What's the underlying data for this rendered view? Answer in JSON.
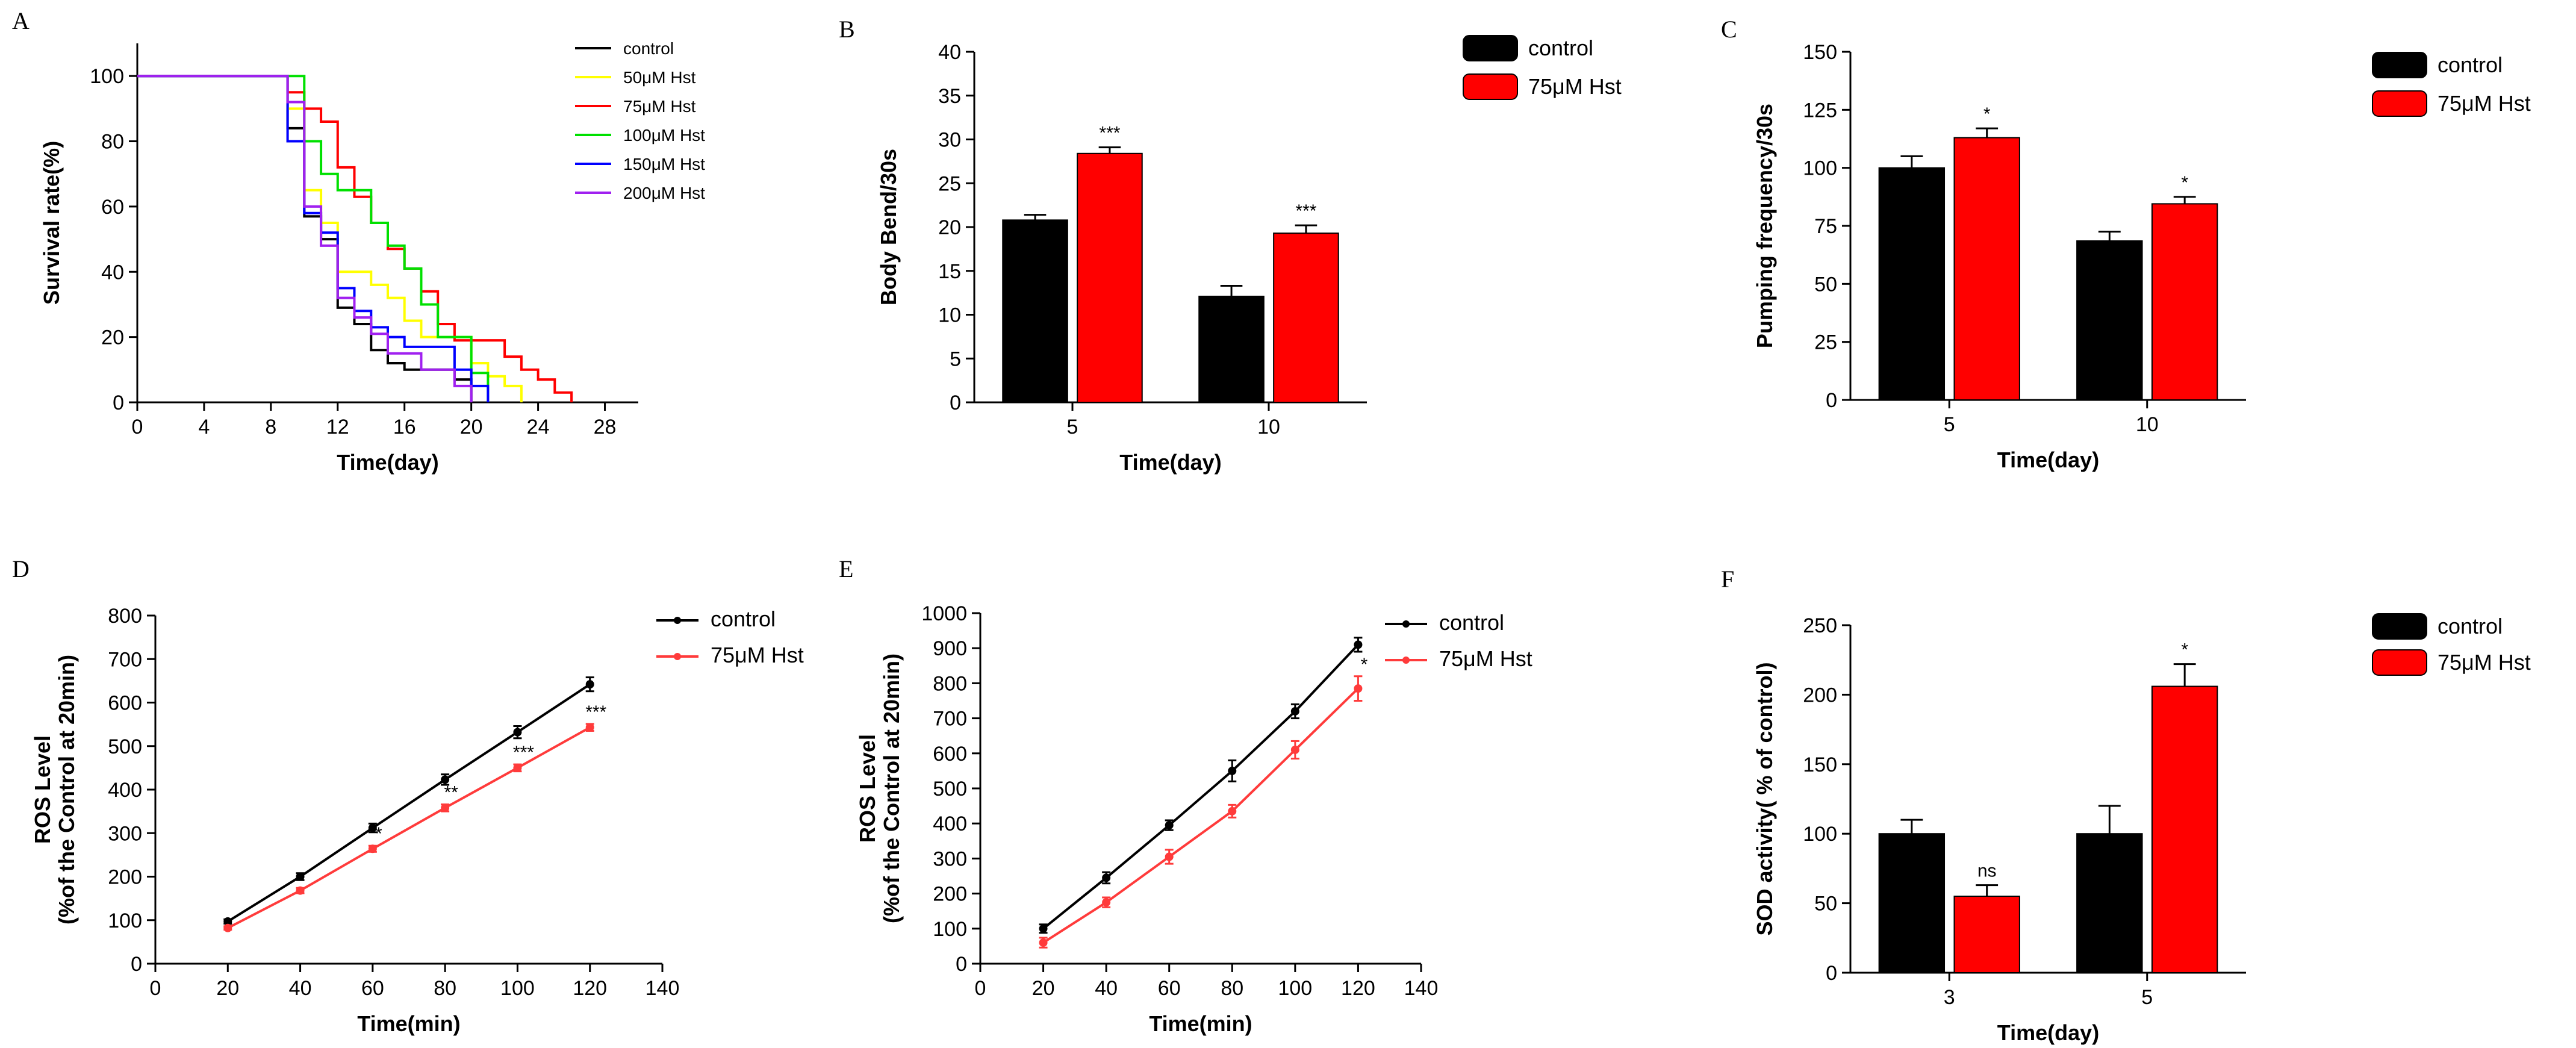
{
  "panels": {
    "A": "A",
    "B": "B",
    "C": "C",
    "D": "D",
    "E": "E",
    "F": "F"
  },
  "colors": {
    "control": "#000000",
    "hst50": "#ffff00",
    "hst75": "#ff0000",
    "hst100": "#00e000",
    "hst150": "#0000ff",
    "hst200": "#a020f0",
    "hst75_line": "#ff3b3b"
  },
  "chart_data": [
    {
      "panel": "A",
      "type": "line",
      "step": true,
      "xlabel": "Time(day)",
      "ylabel": "Survival rate(%)",
      "xlim": [
        0,
        30
      ],
      "ylim": [
        0,
        110
      ],
      "xticks": [
        "0",
        "4",
        "8",
        "12",
        "16",
        "20",
        "24",
        "28"
      ],
      "yticks": [
        "0",
        "20",
        "40",
        "60",
        "80",
        "100"
      ],
      "legend_position": "top-right",
      "series": [
        {
          "name": "control",
          "color": "#000000",
          "points": [
            [
              0,
              100
            ],
            [
              9,
              100
            ],
            [
              9,
              84
            ],
            [
              10,
              84
            ],
            [
              10,
              57
            ],
            [
              11,
              57
            ],
            [
              11,
              50
            ],
            [
              12,
              50
            ],
            [
              12,
              29
            ],
            [
              13,
              29
            ],
            [
              13,
              24
            ],
            [
              14,
              24
            ],
            [
              14,
              16
            ],
            [
              15,
              16
            ],
            [
              15,
              12
            ],
            [
              16,
              12
            ],
            [
              16,
              10
            ],
            [
              19,
              10
            ],
            [
              19,
              7
            ],
            [
              20,
              7
            ],
            [
              20,
              0
            ]
          ]
        },
        {
          "name": "50μM  Hst",
          "color": "#ffff00",
          "points": [
            [
              0,
              100
            ],
            [
              9,
              100
            ],
            [
              9,
              90
            ],
            [
              10,
              90
            ],
            [
              10,
              65
            ],
            [
              11,
              65
            ],
            [
              11,
              55
            ],
            [
              12,
              55
            ],
            [
              12,
              40
            ],
            [
              14,
              40
            ],
            [
              14,
              36
            ],
            [
              15,
              36
            ],
            [
              15,
              32
            ],
            [
              16,
              32
            ],
            [
              16,
              25
            ],
            [
              17,
              25
            ],
            [
              17,
              20
            ],
            [
              20,
              20
            ],
            [
              20,
              12
            ],
            [
              21,
              12
            ],
            [
              21,
              8
            ],
            [
              22,
              8
            ],
            [
              22,
              5
            ],
            [
              23,
              5
            ],
            [
              23,
              0
            ]
          ]
        },
        {
          "name": "75μM  Hst",
          "color": "#ff0000",
          "points": [
            [
              0,
              100
            ],
            [
              9,
              100
            ],
            [
              9,
              95
            ],
            [
              10,
              95
            ],
            [
              10,
              90
            ],
            [
              11,
              90
            ],
            [
              11,
              86
            ],
            [
              12,
              86
            ],
            [
              12,
              72
            ],
            [
              13,
              72
            ],
            [
              13,
              63
            ],
            [
              14,
              63
            ],
            [
              14,
              55
            ],
            [
              15,
              55
            ],
            [
              15,
              47
            ],
            [
              16,
              47
            ],
            [
              16,
              41
            ],
            [
              17,
              41
            ],
            [
              17,
              34
            ],
            [
              18,
              34
            ],
            [
              18,
              24
            ],
            [
              19,
              24
            ],
            [
              19,
              19
            ],
            [
              22,
              19
            ],
            [
              22,
              14
            ],
            [
              23,
              14
            ],
            [
              23,
              10
            ],
            [
              24,
              10
            ],
            [
              24,
              7
            ],
            [
              25,
              7
            ],
            [
              25,
              3
            ],
            [
              26,
              3
            ],
            [
              26,
              0
            ]
          ]
        },
        {
          "name": "100μM Hst",
          "color": "#00e000",
          "points": [
            [
              0,
              100
            ],
            [
              9,
              100
            ],
            [
              9,
              100
            ],
            [
              10,
              100
            ],
            [
              10,
              80
            ],
            [
              11,
              80
            ],
            [
              11,
              70
            ],
            [
              12,
              70
            ],
            [
              12,
              65
            ],
            [
              14,
              65
            ],
            [
              14,
              55
            ],
            [
              15,
              55
            ],
            [
              15,
              48
            ],
            [
              16,
              48
            ],
            [
              16,
              41
            ],
            [
              17,
              41
            ],
            [
              17,
              30
            ],
            [
              18,
              30
            ],
            [
              18,
              20
            ],
            [
              20,
              20
            ],
            [
              20,
              9
            ],
            [
              21,
              9
            ],
            [
              21,
              0
            ]
          ]
        },
        {
          "name": "150μM Hst",
          "color": "#0000ff",
          "points": [
            [
              0,
              100
            ],
            [
              9,
              100
            ],
            [
              9,
              80
            ],
            [
              10,
              80
            ],
            [
              10,
              58
            ],
            [
              11,
              58
            ],
            [
              11,
              52
            ],
            [
              12,
              52
            ],
            [
              12,
              35
            ],
            [
              13,
              35
            ],
            [
              13,
              28
            ],
            [
              14,
              28
            ],
            [
              14,
              23
            ],
            [
              15,
              23
            ],
            [
              15,
              20
            ],
            [
              16,
              20
            ],
            [
              16,
              17
            ],
            [
              19,
              17
            ],
            [
              19,
              10
            ],
            [
              20,
              10
            ],
            [
              20,
              5
            ],
            [
              21,
              5
            ],
            [
              21,
              0
            ]
          ]
        },
        {
          "name": "200μM Hst",
          "color": "#a020f0",
          "points": [
            [
              0,
              100
            ],
            [
              9,
              100
            ],
            [
              9,
              92
            ],
            [
              10,
              92
            ],
            [
              10,
              60
            ],
            [
              11,
              60
            ],
            [
              11,
              48
            ],
            [
              12,
              48
            ],
            [
              12,
              32
            ],
            [
              13,
              32
            ],
            [
              13,
              26
            ],
            [
              14,
              26
            ],
            [
              14,
              21
            ],
            [
              15,
              21
            ],
            [
              15,
              15
            ],
            [
              17,
              15
            ],
            [
              17,
              10
            ],
            [
              19,
              10
            ],
            [
              19,
              5
            ],
            [
              20,
              5
            ],
            [
              20,
              0
            ]
          ]
        }
      ]
    },
    {
      "panel": "B",
      "type": "bar",
      "xlabel": "Time(day)",
      "ylabel": "Body Bend/30s",
      "ylim": [
        0,
        40
      ],
      "yticks": [
        "0",
        "5",
        "10",
        "15",
        "20",
        "25",
        "30",
        "35",
        "40"
      ],
      "categories": [
        "5",
        "10"
      ],
      "legend_position": "top-right",
      "series": [
        {
          "name": "control",
          "color": "#000000",
          "values": [
            20.8,
            12.1
          ],
          "errors": [
            0.6,
            1.2
          ]
        },
        {
          "name": "75μM Hst",
          "color": "#ff0000",
          "values": [
            28.4,
            19.3
          ],
          "errors": [
            0.7,
            0.9
          ]
        }
      ],
      "annotations": [
        {
          "series": 1,
          "category": 0,
          "text": "***"
        },
        {
          "series": 1,
          "category": 1,
          "text": "***"
        }
      ]
    },
    {
      "panel": "C",
      "type": "bar",
      "xlabel": "Time(day)",
      "ylabel": "Pumping frequency/30s",
      "ylim": [
        0,
        150
      ],
      "yticks": [
        "0",
        "25",
        "50",
        "75",
        "100",
        "125",
        "150"
      ],
      "categories": [
        "5",
        "10"
      ],
      "legend_position": "top-right",
      "series": [
        {
          "name": "control",
          "color": "#000000",
          "values": [
            100,
            68.5
          ],
          "errors": [
            5,
            4
          ]
        },
        {
          "name": "75μM Hst",
          "color": "#ff0000",
          "values": [
            113,
            84.5
          ],
          "errors": [
            4,
            3
          ]
        }
      ],
      "annotations": [
        {
          "series": 1,
          "category": 0,
          "text": "*"
        },
        {
          "series": 1,
          "category": 1,
          "text": "*"
        }
      ]
    },
    {
      "panel": "D",
      "type": "line",
      "xlabel": "Time(min)",
      "ylabel": "ROS Level",
      "ylabel2": "(%of the Control at 20min)",
      "xlim": [
        0,
        140
      ],
      "ylim": [
        0,
        800
      ],
      "xticks": [
        "0",
        "20",
        "40",
        "60",
        "80",
        "100",
        "120",
        "140"
      ],
      "yticks": [
        "0",
        "100",
        "200",
        "300",
        "400",
        "500",
        "600",
        "700",
        "800"
      ],
      "legend_position": "top-right",
      "x": [
        20,
        40,
        60,
        80,
        100,
        120
      ],
      "series": [
        {
          "name": "control",
          "color": "#000000",
          "values": [
            97,
            200,
            312,
            423,
            532,
            642
          ],
          "errors": [
            5,
            8,
            10,
            12,
            14,
            16
          ]
        },
        {
          "name": "75μM Hst",
          "color": "#ff3b3b",
          "values": [
            82,
            168,
            264,
            358,
            450,
            543
          ],
          "errors": [
            4,
            6,
            7,
            8,
            8,
            8
          ]
        }
      ],
      "annotations": [
        {
          "x": 60,
          "text": "*"
        },
        {
          "x": 80,
          "text": "**"
        },
        {
          "x": 100,
          "text": "***"
        },
        {
          "x": 120,
          "text": "***"
        }
      ]
    },
    {
      "panel": "E",
      "type": "line",
      "xlabel": "Time(min)",
      "ylabel": "ROS Level",
      "ylabel2": "(%of the Control at 20min)",
      "xlim": [
        0,
        140
      ],
      "ylim": [
        0,
        1000
      ],
      "xticks": [
        "0",
        "20",
        "40",
        "60",
        "80",
        "100",
        "120",
        "140"
      ],
      "yticks": [
        "0",
        "100",
        "200",
        "300",
        "400",
        "500",
        "600",
        "700",
        "800",
        "900",
        "1000"
      ],
      "legend_position": "top-right",
      "x": [
        20,
        40,
        60,
        80,
        100,
        120
      ],
      "series": [
        {
          "name": "control",
          "color": "#000000",
          "values": [
            100,
            245,
            395,
            550,
            720,
            910
          ],
          "errors": [
            12,
            16,
            14,
            30,
            20,
            20
          ]
        },
        {
          "name": "75μM Hst",
          "color": "#ff3b3b",
          "values": [
            60,
            175,
            305,
            435,
            610,
            785
          ],
          "errors": [
            14,
            14,
            20,
            18,
            25,
            35
          ]
        }
      ],
      "annotations": [
        {
          "x": 120,
          "text": "*"
        }
      ]
    },
    {
      "panel": "F",
      "type": "bar",
      "xlabel": "Time(day)",
      "ylabel": "SOD activity( % of control)",
      "ylim": [
        0,
        250
      ],
      "yticks": [
        "0",
        "50",
        "100",
        "150",
        "200",
        "250"
      ],
      "categories": [
        "3",
        "5"
      ],
      "legend_position": "top-right",
      "series": [
        {
          "name": "control",
          "color": "#000000",
          "values": [
            100,
            100
          ],
          "errors": [
            10,
            20
          ]
        },
        {
          "name": "75μM Hst",
          "color": "#ff0000",
          "values": [
            55,
            206
          ],
          "errors": [
            8,
            16
          ]
        }
      ],
      "annotations": [
        {
          "series": 1,
          "category": 0,
          "text": "ns"
        },
        {
          "series": 1,
          "category": 1,
          "text": "*"
        }
      ]
    }
  ]
}
